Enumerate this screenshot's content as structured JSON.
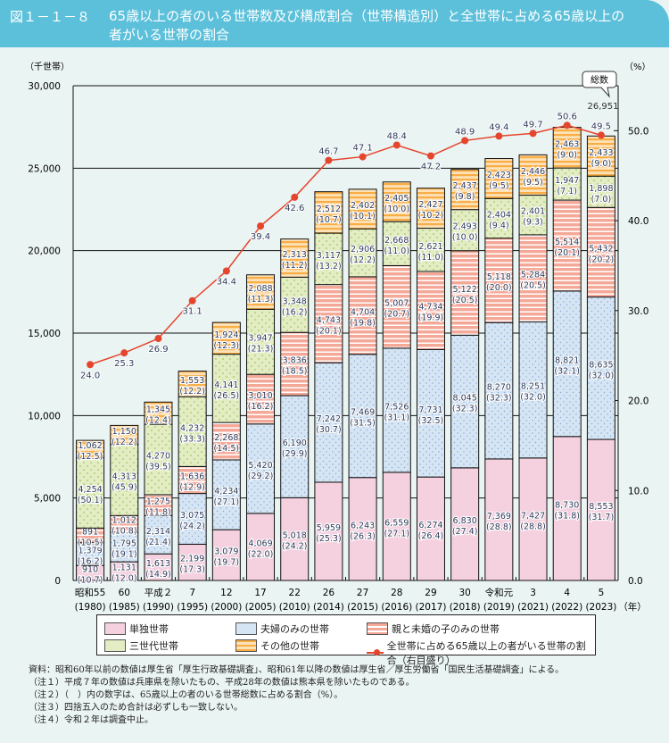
{
  "header": {
    "figure_number": "図１－１－８",
    "title": "65歳以上の者のいる世帯数及び構成割合（世帯構造別）と全世帯に占める65歳以上の者がいる世帯の割合"
  },
  "chart_data": {
    "type": "bar",
    "stacked": true,
    "title": "65歳以上の者のいる世帯数及び構成割合（世帯構造別）と全世帯に占める65歳以上の者がいる世帯の割合",
    "ylabel": "（千世帯）",
    "y2label": "（%）",
    "xunit": "（年）",
    "ylim": [
      0,
      30000
    ],
    "y2lim": [
      0,
      55
    ],
    "yticks": [
      "0",
      "5,000",
      "10,000",
      "15,000",
      "20,000",
      "25,000",
      "30,000"
    ],
    "y2ticks": [
      "0.0",
      "10.0",
      "20.0",
      "30.0",
      "40.0",
      "50.0"
    ],
    "grid": true,
    "legend_position": "bottom",
    "categories": [
      "昭和55",
      "60",
      "平成２",
      "7",
      "12",
      "17",
      "22",
      "26",
      "27",
      "28",
      "29",
      "30",
      "令和元",
      "3",
      "4",
      "5"
    ],
    "categories_western": [
      "(1980)",
      "(1985)",
      "(1990)",
      "(1995)",
      "(2000)",
      "(2005)",
      "(2010)",
      "(2014)",
      "(2015)",
      "(2016)",
      "(2017)",
      "(2018)",
      "(2019)",
      "(2021)",
      "(2022)",
      "(2023)"
    ],
    "series": [
      {
        "name": "単独世帯",
        "color": "#f5d1df",
        "values": [
          910,
          1131,
          1613,
          2199,
          3079,
          4069,
          5018,
          5959,
          6243,
          6559,
          6274,
          6830,
          7369,
          7427,
          8730,
          8553
        ],
        "shares": [
          10.7,
          12.0,
          14.9,
          17.3,
          19.7,
          22.0,
          24.2,
          25.3,
          26.3,
          27.1,
          26.4,
          27.4,
          28.8,
          28.8,
          31.8,
          31.7
        ]
      },
      {
        "name": "夫婦のみの世帯",
        "color": "#d5e5f3",
        "values": [
          1379,
          1795,
          2314,
          3075,
          4234,
          5420,
          6190,
          7242,
          7469,
          7526,
          7731,
          8045,
          8270,
          8251,
          8821,
          8635
        ],
        "shares": [
          16.2,
          19.1,
          21.4,
          24.2,
          27.1,
          29.2,
          29.9,
          30.7,
          31.5,
          31.1,
          32.5,
          32.3,
          32.3,
          32.0,
          32.1,
          32.0
        ]
      },
      {
        "name": "親と未婚の子のみの世帯",
        "color": "#f4a898",
        "values": [
          891,
          1012,
          1275,
          1636,
          2268,
          3010,
          3836,
          4743,
          4704,
          5007,
          4734,
          5122,
          5118,
          5284,
          5514,
          5432
        ],
        "shares": [
          10.5,
          10.8,
          11.8,
          12.9,
          14.5,
          16.2,
          18.5,
          20.1,
          19.8,
          20.7,
          19.9,
          20.5,
          20.0,
          20.5,
          20.1,
          20.2
        ]
      },
      {
        "name": "三世代世帯",
        "color": "#e3ecc2",
        "values": [
          4254,
          4313,
          4270,
          4232,
          4141,
          3947,
          3348,
          3117,
          2906,
          2668,
          2621,
          2493,
          2404,
          2401,
          1947,
          1898
        ],
        "shares": [
          50.1,
          45.9,
          39.5,
          33.3,
          26.5,
          21.3,
          16.2,
          13.2,
          12.2,
          11.0,
          11.0,
          10.0,
          9.4,
          9.3,
          7.1,
          7.0
        ]
      },
      {
        "name": "その他の世帯",
        "color": "#f9ad45",
        "values": [
          1062,
          1150,
          1345,
          1553,
          1924,
          2088,
          2313,
          2512,
          2402,
          2405,
          2427,
          2437,
          2423,
          2446,
          2463,
          2433
        ],
        "shares": [
          12.5,
          12.2,
          12.4,
          12.2,
          12.3,
          11.3,
          11.2,
          10.7,
          10.1,
          10.0,
          10.2,
          9.8,
          9.5,
          9.5,
          9.0,
          9.0
        ]
      }
    ],
    "line_series": {
      "name": "全世帯に占める65歳以上の者がいる世帯の割合（右目盛り）",
      "axis": "right",
      "color": "#e5452d",
      "values": [
        24.0,
        25.3,
        26.9,
        31.1,
        34.4,
        39.4,
        42.6,
        46.7,
        47.1,
        48.4,
        47.2,
        48.9,
        49.4,
        49.7,
        50.6,
        49.5
      ]
    },
    "annotation": {
      "label": "総数",
      "value": "26,951"
    }
  },
  "notes": [
    "資料：昭和60年以前の数値は厚生省「厚生行政基礎調査」、昭和61年以降の数値は厚生省／厚生労働省「国民生活基礎調査」による。",
    "（注１）平成７年の数値は兵庫県を除いたもの、平成28年の数値は熊本県を除いたものである。",
    "（注２）（　）内の数字は、65歳以上の者のいる世帯総数に占める割合（%）。",
    "（注３）四捨五入のため合計は必ずしも一致しない。",
    "（注４）令和２年は調査中止。"
  ]
}
